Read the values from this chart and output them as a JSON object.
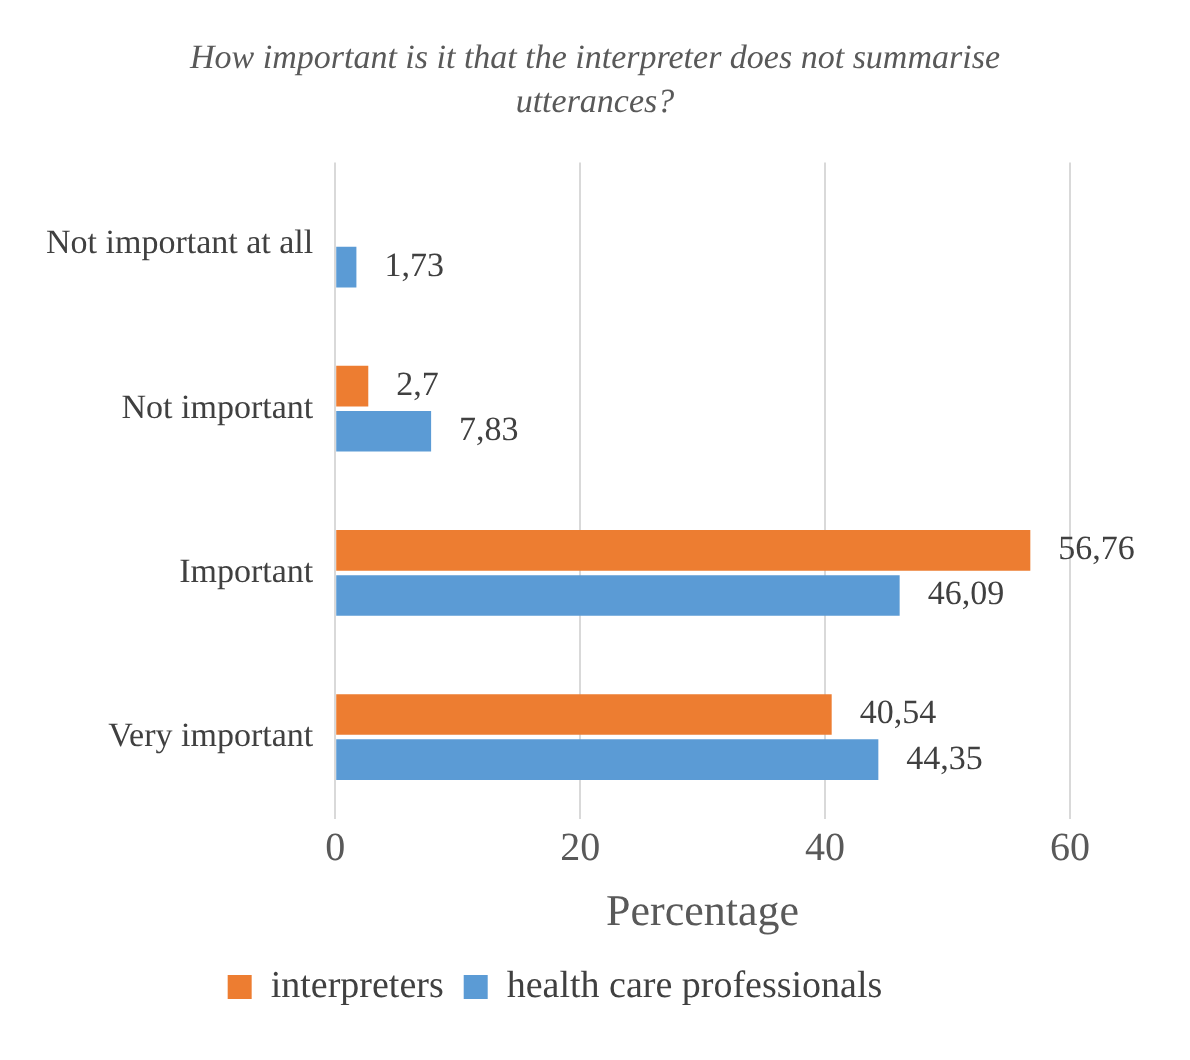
{
  "chart_data": {
    "type": "bar",
    "orientation": "horizontal",
    "title": "How important is it that the interpreter does not summarise utterances?",
    "xlabel": "Percentage",
    "categories": [
      "Not important at all",
      "Not important",
      "Important",
      "Very important"
    ],
    "series": [
      {
        "name": "interpreters",
        "color": "#ed7d31",
        "values": [
          null,
          2.7,
          56.76,
          40.54
        ],
        "value_labels": [
          null,
          "2,7",
          "56,76",
          "40,54"
        ]
      },
      {
        "name": "health care professionals",
        "color": "#5b9bd5",
        "values": [
          1.73,
          7.83,
          46.09,
          44.35
        ],
        "value_labels": [
          "1,73",
          "7,83",
          "46,09",
          "44,35"
        ]
      }
    ],
    "xlim": [
      0,
      60
    ],
    "xticks": [
      0,
      20,
      40,
      60
    ],
    "grid": "x",
    "legend": "bottom"
  }
}
